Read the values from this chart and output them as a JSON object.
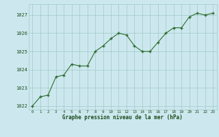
{
  "hours": [
    0,
    1,
    2,
    3,
    4,
    5,
    6,
    7,
    8,
    9,
    10,
    11,
    12,
    13,
    14,
    15,
    16,
    17,
    18,
    19,
    20,
    21,
    22,
    23
  ],
  "pressure": [
    1022.0,
    1022.5,
    1022.6,
    1023.6,
    1023.7,
    1024.3,
    1024.2,
    1024.2,
    1025.0,
    1025.3,
    1025.7,
    1026.0,
    1025.9,
    1025.3,
    1025.0,
    1025.0,
    1025.5,
    1026.0,
    1026.3,
    1026.3,
    1026.9,
    1027.1,
    1027.0,
    1027.1
  ],
  "line_color": "#2d6a2d",
  "marker_color": "#2d6a2d",
  "bg_color": "#cce8ee",
  "plot_bg_color": "#cce8ee",
  "grid_color": "#a0c8c8",
  "xlabel": "Graphe pression niveau de la mer (hPa)",
  "xlabel_color": "#1a4a1a",
  "tick_label_color": "#1a4a1a",
  "ylim_min": 1021.8,
  "ylim_max": 1027.6,
  "yticks": [
    1022,
    1023,
    1024,
    1025,
    1026,
    1027
  ],
  "xticks": [
    0,
    1,
    2,
    3,
    4,
    5,
    6,
    7,
    8,
    9,
    10,
    11,
    12,
    13,
    14,
    15,
    16,
    17,
    18,
    19,
    20,
    21,
    22,
    23
  ]
}
